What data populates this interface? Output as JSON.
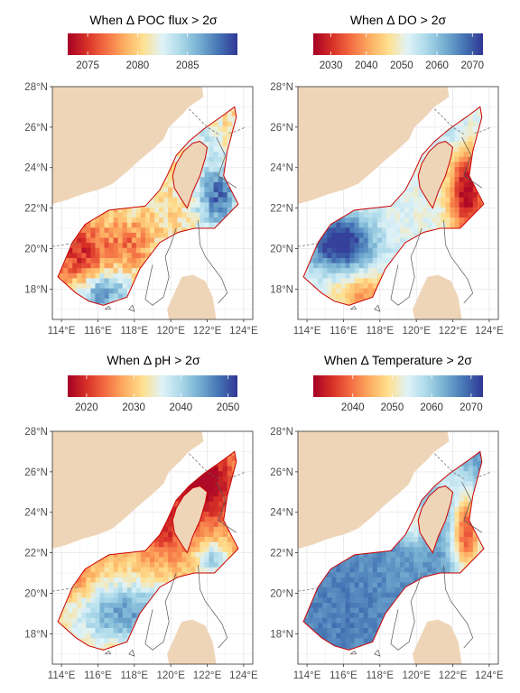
{
  "chart_data": [
    {
      "type": "heatmap",
      "title": "When Δ POC flux > 2σ",
      "colorbar": {
        "ticks": [
          2075,
          2080,
          2085
        ],
        "range": [
          2073,
          2090
        ],
        "reversed_palette": true
      },
      "x_ticks": [
        "114°E",
        "116°E",
        "118°E",
        "120°E",
        "122°E",
        "124°E"
      ],
      "y_ticks": [
        "18°N",
        "20°N",
        "22°N",
        "24°N",
        "26°N",
        "28°N"
      ],
      "xlim": [
        113.5,
        124.5
      ],
      "ylim": [
        16.5,
        28
      ],
      "grid": true,
      "field": {
        "nw_strait": 2081,
        "taiwan_east": 2088,
        "ne_tip": 2086,
        "sw_west": 2076,
        "sw_south": 2088,
        "central": 2082
      }
    },
    {
      "type": "heatmap",
      "title": "When Δ DO > 2σ",
      "colorbar": {
        "ticks": [
          2030,
          2040,
          2050,
          2060,
          2070
        ],
        "range": [
          2025,
          2073
        ],
        "reversed_palette": true
      },
      "x_ticks": [
        "114°E",
        "116°E",
        "118°E",
        "120°E",
        "122°E",
        "124°E"
      ],
      "y_ticks": [
        "18°N",
        "20°N",
        "22°N",
        "24°N",
        "26°N",
        "28°N"
      ],
      "xlim": [
        113.5,
        124.5
      ],
      "ylim": [
        16.5,
        28
      ],
      "grid": true,
      "field": {
        "nw_strait": 2050,
        "taiwan_east": 2030,
        "ne_tip": 2048,
        "sw_west": 2068,
        "sw_south": 2040,
        "central": 2052
      }
    },
    {
      "type": "heatmap",
      "title": "When Δ pH > 2σ",
      "colorbar": {
        "ticks": [
          2020,
          2030,
          2040,
          2050
        ],
        "range": [
          2016,
          2052
        ],
        "reversed_palette": true
      },
      "x_ticks": [
        "114°E",
        "116°E",
        "118°E",
        "120°E",
        "122°E",
        "124°E"
      ],
      "y_ticks": [
        "18°N",
        "20°N",
        "22°N",
        "24°N",
        "26°N",
        "28°N"
      ],
      "xlim": [
        113.5,
        124.5
      ],
      "ylim": [
        16.5,
        28
      ],
      "grid": true,
      "field": {
        "nw_strait": 2020,
        "taiwan_east": 2036,
        "ne_tip": 2020,
        "sw_west": 2034,
        "sw_south": 2042,
        "central": 2038
      }
    },
    {
      "type": "heatmap",
      "title": "When Δ Temperature > 2σ",
      "colorbar": {
        "ticks": [
          2040,
          2050,
          2060,
          2070
        ],
        "range": [
          2030,
          2073
        ],
        "reversed_palette": true
      },
      "x_ticks": [
        "114°E",
        "116°E",
        "118°E",
        "120°E",
        "122°E",
        "124°E"
      ],
      "y_ticks": [
        "18°N",
        "20°N",
        "22°N",
        "24°N",
        "26°N",
        "28°N"
      ],
      "xlim": [
        113.5,
        124.5
      ],
      "ylim": [
        16.5,
        28
      ],
      "grid": true,
      "field": {
        "nw_strait": 2058,
        "taiwan_east": 2034,
        "ne_tip": 2055,
        "sw_west": 2066,
        "sw_south": 2066,
        "central": 2064
      }
    }
  ],
  "colors": {
    "land": "#efd5b8",
    "boundary": "#cc0000",
    "panel_bg": "#ffffff",
    "grid": "#e6e6e6",
    "palette": [
      "#a50026",
      "#d73027",
      "#f46d43",
      "#fdae61",
      "#fee090",
      "#e0f3f8",
      "#abd9e9",
      "#74add1",
      "#4575b4",
      "#313695"
    ]
  }
}
